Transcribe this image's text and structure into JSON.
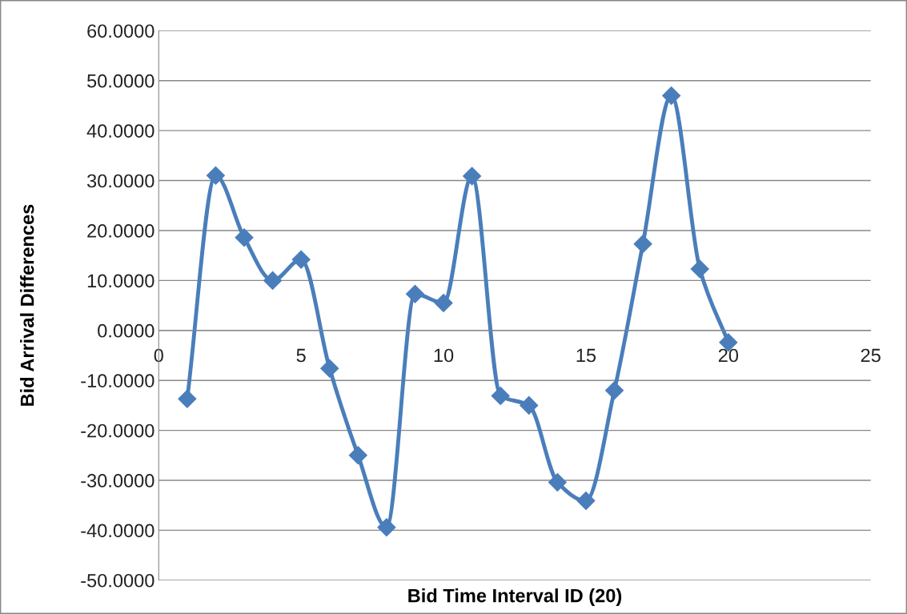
{
  "chart_data": {
    "type": "line",
    "xlabel": "Bid Time Interval ID (20)",
    "ylabel": "Bid Arrival Differences",
    "x": [
      1,
      2,
      3,
      4,
      5,
      6,
      7,
      8,
      9,
      10,
      11,
      12,
      13,
      14,
      15,
      16,
      17,
      18,
      19,
      20
    ],
    "series": [
      {
        "color": "#4a7ebb",
        "values": [
          -13.7,
          31.0,
          18.6,
          10.0,
          14.2,
          -7.6,
          -25.0,
          -39.4,
          7.3,
          5.5,
          30.9,
          -13.1,
          -15.0,
          -30.4,
          -34.1,
          -12.0,
          17.3,
          47.0,
          12.3,
          -2.4
        ]
      }
    ],
    "xlim": [
      0,
      25
    ],
    "xticks": [
      0,
      5,
      10,
      15,
      20,
      25
    ],
    "ylim": [
      -50,
      60
    ],
    "yticks": [
      {
        "value": -50,
        "label": "-50.0000"
      },
      {
        "value": -40,
        "label": "-40.0000"
      },
      {
        "value": -30,
        "label": "-30.0000"
      },
      {
        "value": -20,
        "label": "-20.0000"
      },
      {
        "value": -10,
        "label": "-10.0000"
      },
      {
        "value": 0,
        "label": "0.0000"
      },
      {
        "value": 10,
        "label": "10.0000"
      },
      {
        "value": 20,
        "label": "20.0000"
      },
      {
        "value": 30,
        "label": "30.0000"
      },
      {
        "value": 40,
        "label": "40.0000"
      },
      {
        "value": 50,
        "label": "50.0000"
      },
      {
        "value": 60,
        "label": "60.0000"
      }
    ],
    "grid": "y",
    "marker": "diamond",
    "line_style": "solid",
    "legend": false
  }
}
